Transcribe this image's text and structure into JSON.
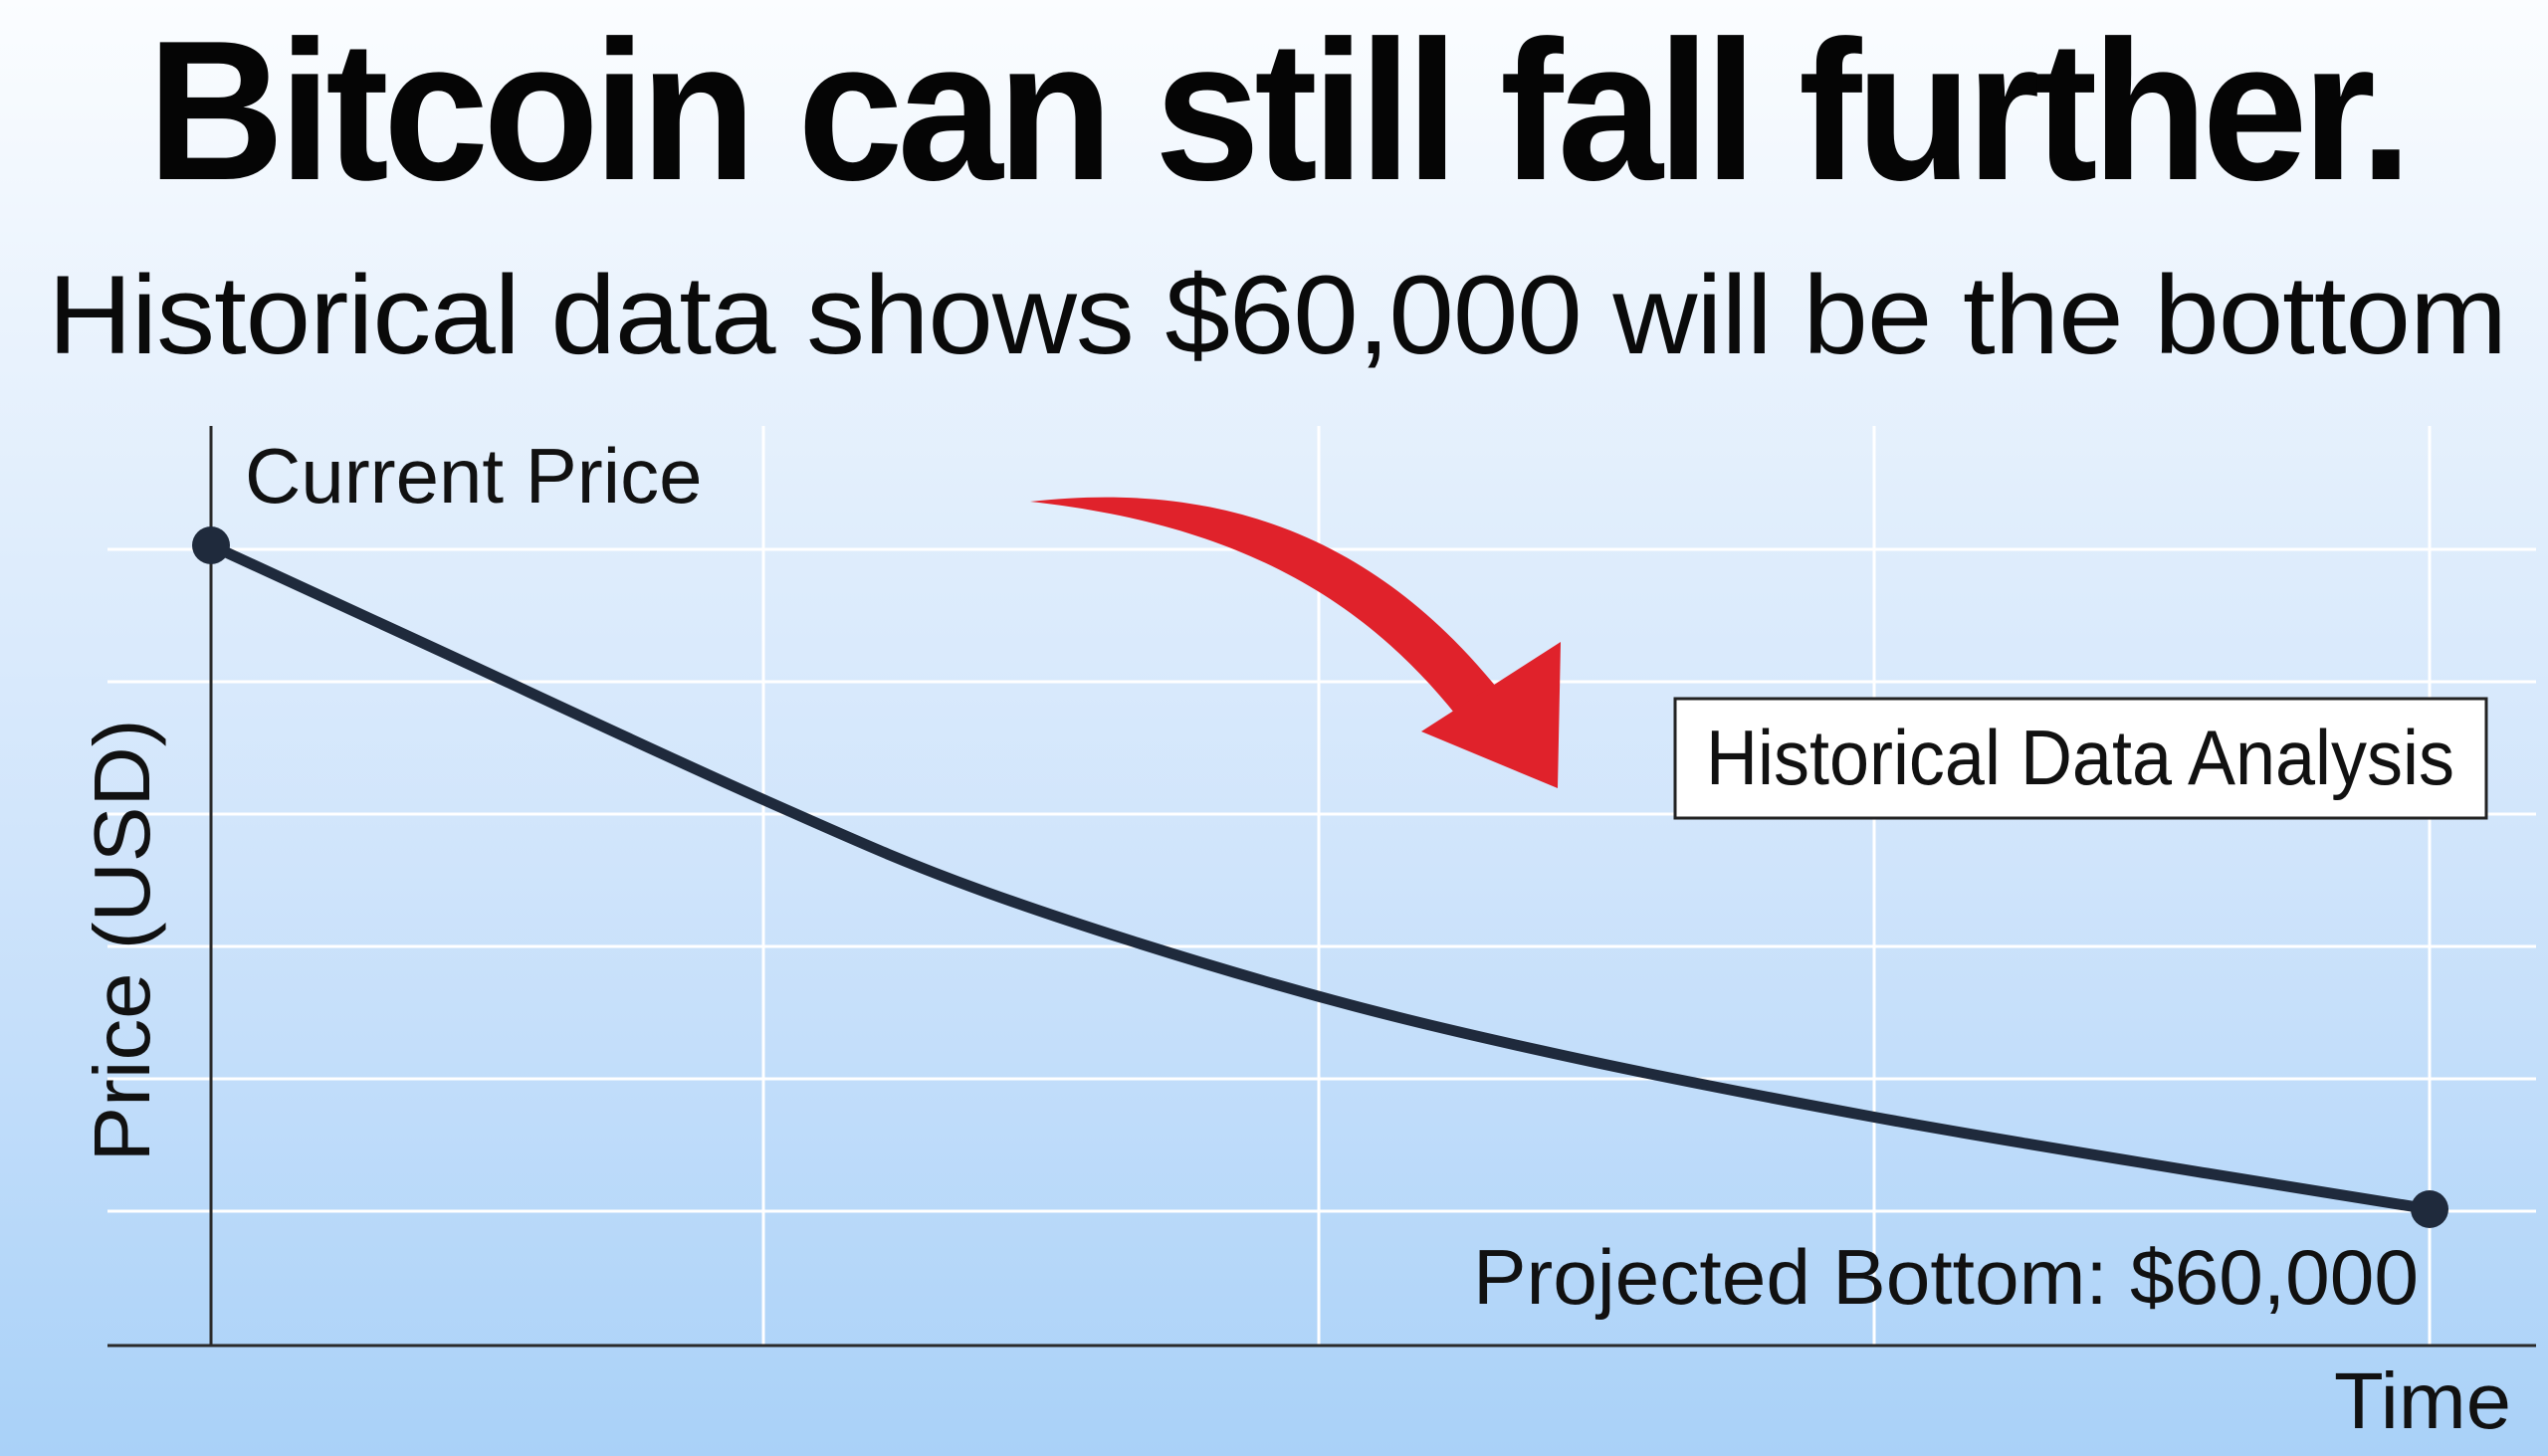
{
  "colors": {
    "line": "#1f2a3c",
    "arrow": "#e0222b",
    "grid": "#ffffff",
    "axis": "#2a2a2a"
  },
  "chart_data": {
    "type": "line",
    "title": "Bitcoin can still fall further.",
    "subtitle": "Historical data shows $60,000 will be the bottom",
    "xlabel": "Time",
    "ylabel": "Price (USD)",
    "grid": true,
    "series": [
      {
        "values": [
          {
            "x": 0.0,
            "y": 0.0
          },
          {
            "x": 0.1,
            "y": -0.1
          },
          {
            "x": 0.25,
            "y": -0.25
          },
          {
            "x": 0.35,
            "y": -0.34
          },
          {
            "x": 0.48,
            "y": -0.43
          },
          {
            "x": 0.6,
            "y": -0.495
          },
          {
            "x": 0.75,
            "y": -0.56
          },
          {
            "x": 0.9,
            "y": -0.615
          },
          {
            "x": 1.0,
            "y": -0.65
          }
        ]
      }
    ],
    "annotations": {
      "start_label": "Current Price",
      "end_label": "Projected Bottom: $60,000",
      "box_label": "Historical Data Analysis"
    }
  }
}
